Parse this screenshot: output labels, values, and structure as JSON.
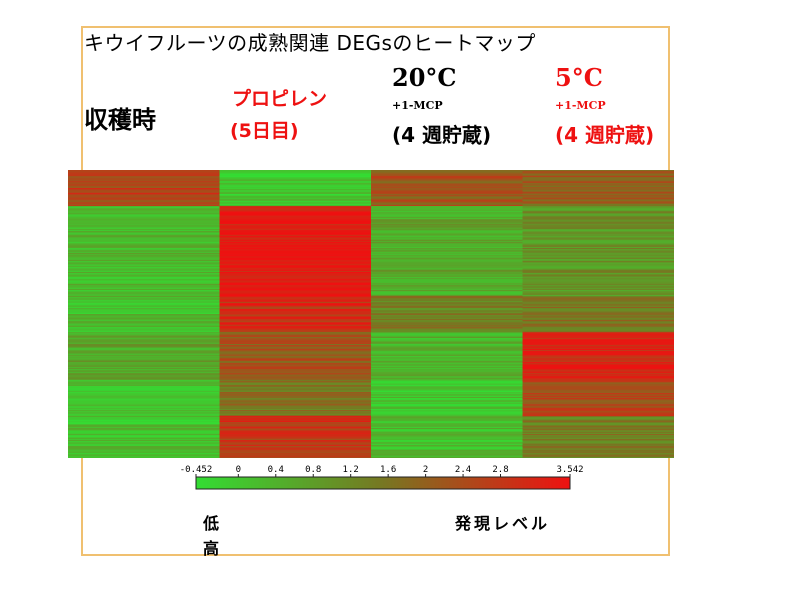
{
  "title": "キウイフルーツの成熟関連 DEGsのヒートマップ",
  "columns": [
    {
      "lines": [
        "収穫時"
      ]
    },
    {
      "lines": [
        "プロピレン",
        "(5日目)"
      ]
    },
    {
      "lines": [
        "20°C",
        "+1-MCP",
        "(4 週貯蔵)"
      ]
    },
    {
      "lines": [
        "5°C",
        "+1-MCP",
        "(4 週貯蔵)"
      ]
    }
  ],
  "colors": {
    "low": "#33dd33",
    "mid": "#777722",
    "high": "#ee1111",
    "text_red": "#ee1111",
    "frame": "#f0c070"
  },
  "chart_data": {
    "type": "heatmap",
    "categories": [
      "収穫時",
      "プロピレン (5日目)",
      "20°C +1-MCP (4 週貯蔵)",
      "5°C +1-MCP (4 週貯蔵)"
    ],
    "value_range": [
      -0.452,
      3.542
    ],
    "legend": {
      "ticks": [
        "-0.452",
        "0",
        "0.4",
        "0.8",
        "1.2",
        "1.6",
        "2",
        "2.4",
        "2.8",
        "3.542"
      ],
      "low_label": "低",
      "high_label": "高",
      "label": "発現レベル"
    },
    "row_blocks": [
      {
        "rows": 30,
        "values": [
          2.6,
          0.0,
          2.2,
          2.0
        ]
      },
      {
        "rows": 75,
        "values": [
          0.3,
          3.4,
          0.6,
          1.0
        ]
      },
      {
        "rows": 30,
        "values": [
          0.2,
          3.0,
          1.4,
          1.6
        ]
      },
      {
        "rows": 40,
        "values": [
          0.6,
          2.2,
          0.4,
          3.2
        ]
      },
      {
        "rows": 30,
        "values": [
          0.0,
          1.6,
          0.1,
          2.4
        ]
      },
      {
        "rows": 35,
        "values": [
          0.1,
          2.8,
          0.2,
          1.4
        ]
      }
    ]
  }
}
